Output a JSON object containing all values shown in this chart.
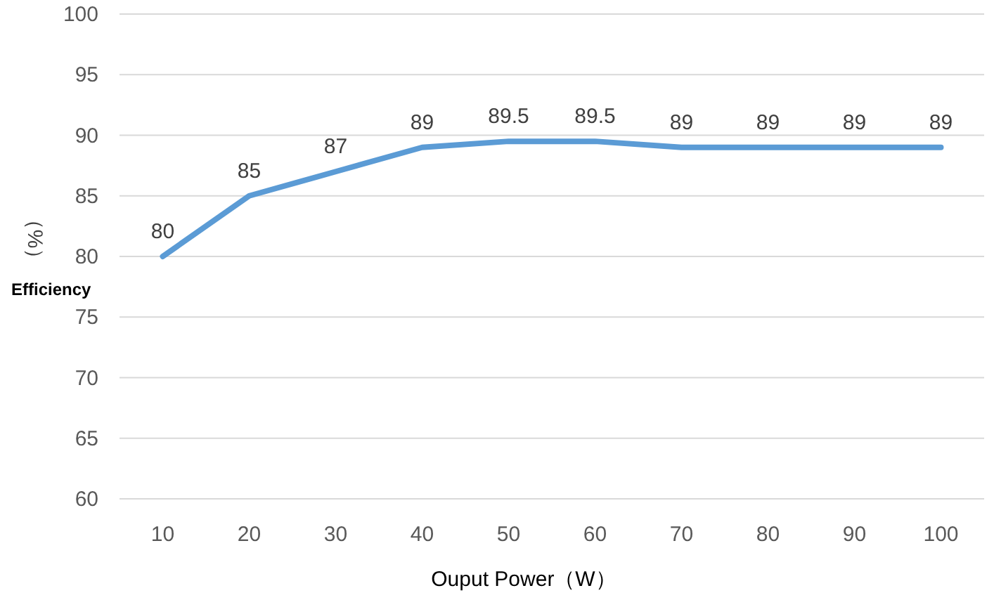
{
  "chart_data": {
    "type": "line",
    "xlabel": "Ouput Power（W）",
    "ylabel": "（%）",
    "annotations": [
      "Efficiency"
    ],
    "categories": [
      "10",
      "20",
      "30",
      "40",
      "50",
      "60",
      "70",
      "80",
      "90",
      "100"
    ],
    "series": [
      {
        "color": "#5b9bd5",
        "values": [
          80,
          85,
          87,
          89,
          89.5,
          89.5,
          89,
          89,
          89,
          89
        ]
      }
    ],
    "ylim": [
      60,
      100
    ],
    "yticks": [
      60,
      65,
      70,
      75,
      80,
      85,
      90,
      95,
      100
    ],
    "grid": "y",
    "data_labels": true
  }
}
